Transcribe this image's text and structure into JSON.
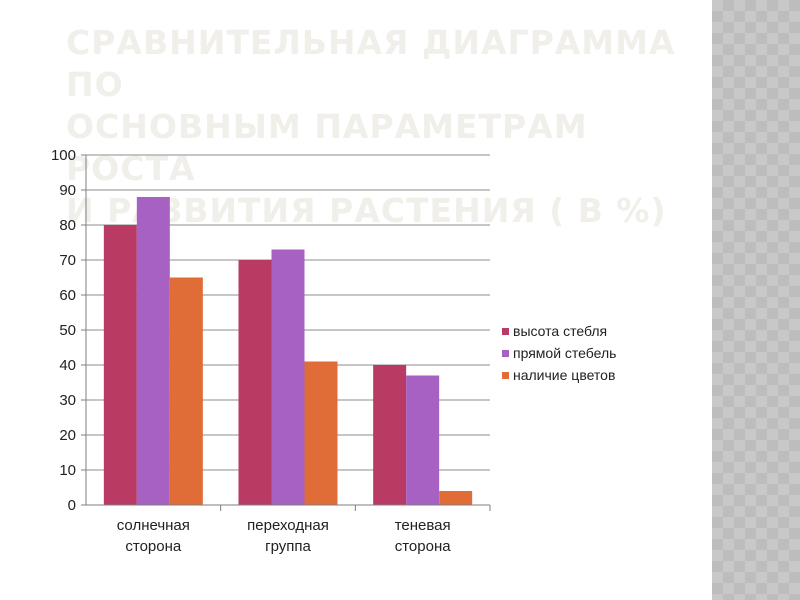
{
  "slide": {
    "title": "СРАВНИТЕЛЬНАЯ ДИАГРАММА ПО\nОСНОВНЫМ ПАРАМЕТРАМ  РОСТА\nИ РАЗВИТИЯ РАСТЕНИЯ ( В %)"
  },
  "colors": {
    "title": "#f1efea",
    "panel": "#c8c8c8",
    "gridline": "#8c8c8c",
    "axis": "#7f7f7f"
  },
  "chart_data": {
    "type": "bar",
    "title": "",
    "xlabel": "",
    "ylabel": "",
    "ylim": [
      0,
      100
    ],
    "yticks": [
      "0",
      "10",
      "20",
      "30",
      "40",
      "50",
      "60",
      "70",
      "80",
      "90",
      "100"
    ],
    "grid": true,
    "legend_position": "right",
    "categories": [
      [
        "солнечная",
        "сторона"
      ],
      [
        "переходная",
        "группа"
      ],
      [
        "теневая",
        "сторона"
      ]
    ],
    "series": [
      {
        "name": "высота стебля",
        "color": "#b93a63",
        "values": [
          80,
          70,
          40
        ]
      },
      {
        "name": "прямой стебель",
        "color": "#a661c2",
        "values": [
          88,
          73,
          37
        ]
      },
      {
        "name": "наличие цветов",
        "color": "#e06c38",
        "values": [
          65,
          41,
          4
        ]
      }
    ]
  }
}
